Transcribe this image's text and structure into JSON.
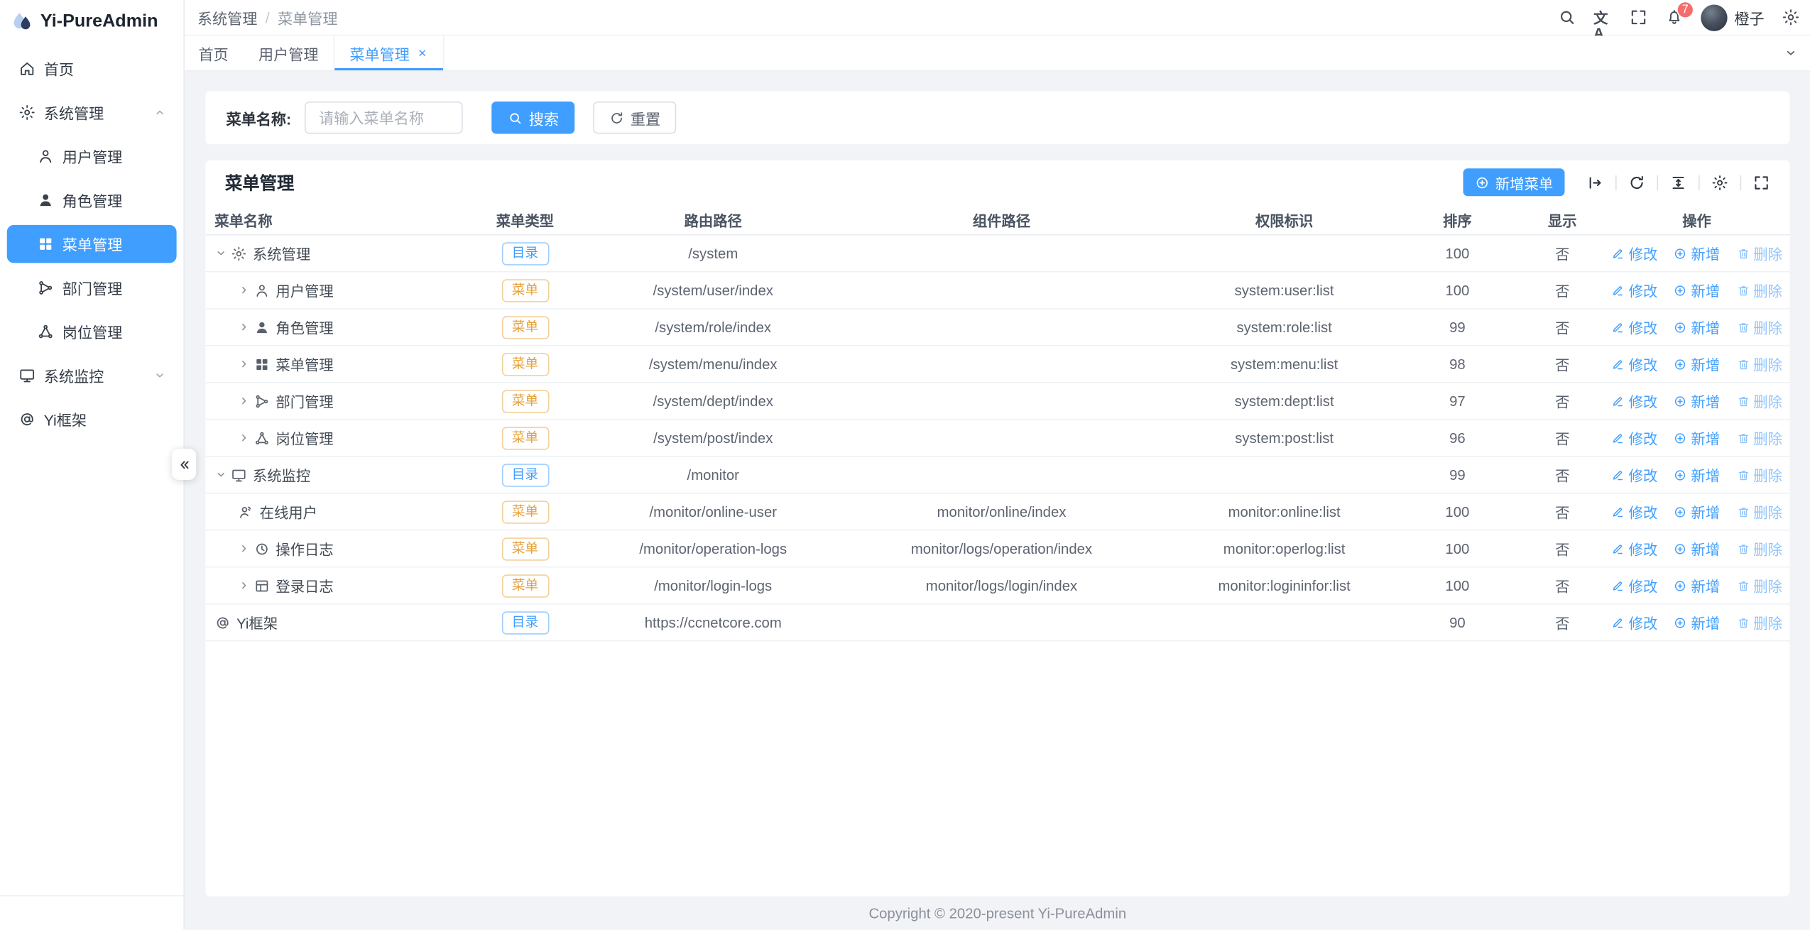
{
  "app": {
    "title": "Yi-PureAdmin"
  },
  "colors": {
    "primary": "#409eff",
    "tag_dir": "#409eff",
    "tag_menu": "#e6a23c",
    "badge": "#f56c6c"
  },
  "sidebar": {
    "items": [
      {
        "key": "home",
        "label": "首页",
        "icon": "home",
        "level": 1
      },
      {
        "key": "system-mgmt",
        "label": "系统管理",
        "icon": "gear",
        "level": 1,
        "chevron": "up"
      },
      {
        "key": "user-mgmt",
        "label": "用户管理",
        "icon": "user",
        "level": 2
      },
      {
        "key": "role-mgmt",
        "label": "角色管理",
        "icon": "user-filled",
        "level": 2
      },
      {
        "key": "menu-mgmt",
        "label": "菜单管理",
        "icon": "grid",
        "level": 2,
        "active": true
      },
      {
        "key": "dept-mgmt",
        "label": "部门管理",
        "icon": "tree",
        "level": 2
      },
      {
        "key": "post-mgmt",
        "label": "岗位管理",
        "icon": "molecule",
        "level": 2
      },
      {
        "key": "system-monitor",
        "label": "系统监控",
        "icon": "monitor",
        "level": 1,
        "chevron": "down"
      },
      {
        "key": "yi-framework",
        "label": "Yi框架",
        "icon": "at",
        "level": 1
      }
    ]
  },
  "navbar": {
    "breadcrumb_parent": "系统管理",
    "breadcrumb_separator": "/",
    "breadcrumb_current": "菜单管理",
    "action_icons": [
      {
        "key": "search",
        "icon": "search"
      },
      {
        "key": "translate",
        "icon": "translate"
      },
      {
        "key": "fullscreen",
        "icon": "fullscreen"
      },
      {
        "key": "notifications",
        "icon": "bell",
        "badge": "7"
      }
    ],
    "username": "橙子"
  },
  "tabs": {
    "items": [
      {
        "key": "home",
        "label": "首页"
      },
      {
        "key": "user-mgmt",
        "label": "用户管理"
      },
      {
        "key": "menu-mgmt",
        "label": "菜单管理",
        "active": true,
        "closable": true
      }
    ]
  },
  "search": {
    "label": "菜单名称:",
    "placeholder": "请输入菜单名称",
    "search_btn": "搜索",
    "reset_btn": "重置"
  },
  "card": {
    "title": "菜单管理",
    "add_btn": "新增菜单",
    "toolbar_icons": [
      {
        "key": "expand-toggle",
        "icon": "fold-arrow"
      },
      {
        "key": "refresh",
        "icon": "refresh"
      },
      {
        "key": "density",
        "icon": "density"
      },
      {
        "key": "column-settings",
        "icon": "gear"
      },
      {
        "key": "table-fullscreen",
        "icon": "fullscreen"
      }
    ]
  },
  "table": {
    "headers": [
      "菜单名称",
      "菜单类型",
      "路由路径",
      "组件路径",
      "权限标识",
      "排序",
      "显示",
      "操作"
    ],
    "tag_types": {
      "dir": "目录",
      "menu": "菜单"
    },
    "actions": {
      "edit": "修改",
      "add": "新增",
      "delete": "删除"
    },
    "rows": [
      {
        "name": "系统管理",
        "icon": "gear",
        "level": 1,
        "chevron": "down",
        "type": "dir",
        "route": "/system",
        "component": "",
        "perm": "",
        "sort": "100",
        "visible": "否"
      },
      {
        "name": "用户管理",
        "icon": "user",
        "level": 2,
        "chevron": "right",
        "type": "menu",
        "route": "/system/user/index",
        "component": "",
        "perm": "system:user:list",
        "sort": "100",
        "visible": "否"
      },
      {
        "name": "角色管理",
        "icon": "user-filled",
        "level": 2,
        "chevron": "right",
        "type": "menu",
        "route": "/system/role/index",
        "component": "",
        "perm": "system:role:list",
        "sort": "99",
        "visible": "否"
      },
      {
        "name": "菜单管理",
        "icon": "grid",
        "level": 2,
        "chevron": "right",
        "type": "menu",
        "route": "/system/menu/index",
        "component": "",
        "perm": "system:menu:list",
        "sort": "98",
        "visible": "否"
      },
      {
        "name": "部门管理",
        "icon": "tree",
        "level": 2,
        "chevron": "right",
        "type": "menu",
        "route": "/system/dept/index",
        "component": "",
        "perm": "system:dept:list",
        "sort": "97",
        "visible": "否"
      },
      {
        "name": "岗位管理",
        "icon": "molecule",
        "level": 2,
        "chevron": "right",
        "type": "menu",
        "route": "/system/post/index",
        "component": "",
        "perm": "system:post:list",
        "sort": "96",
        "visible": "否"
      },
      {
        "name": "系统监控",
        "icon": "monitor",
        "level": 1,
        "chevron": "down",
        "type": "dir",
        "route": "/monitor",
        "component": "",
        "perm": "",
        "sort": "99",
        "visible": "否"
      },
      {
        "name": "在线用户",
        "icon": "online-user",
        "level": 2,
        "chevron": "",
        "type": "menu",
        "route": "/monitor/online-user",
        "component": "monitor/online/index",
        "perm": "monitor:online:list",
        "sort": "100",
        "visible": "否"
      },
      {
        "name": "操作日志",
        "icon": "clock",
        "level": 2,
        "chevron": "right",
        "type": "menu",
        "route": "/monitor/operation-logs",
        "component": "monitor/logs/operation/index",
        "perm": "monitor:operlog:list",
        "sort": "100",
        "visible": "否"
      },
      {
        "name": "登录日志",
        "icon": "calendar",
        "level": 2,
        "chevron": "right",
        "type": "menu",
        "route": "/monitor/login-logs",
        "component": "monitor/logs/login/index",
        "perm": "monitor:logininfor:list",
        "sort": "100",
        "visible": "否"
      },
      {
        "name": "Yi框架",
        "icon": "at",
        "level": 1,
        "chevron": "",
        "type": "dir",
        "route": "https://ccnetcore.com",
        "component": "",
        "perm": "",
        "sort": "90",
        "visible": "否"
      }
    ]
  },
  "footer": {
    "copyright": "Copyright © 2020-present Yi-PureAdmin"
  }
}
